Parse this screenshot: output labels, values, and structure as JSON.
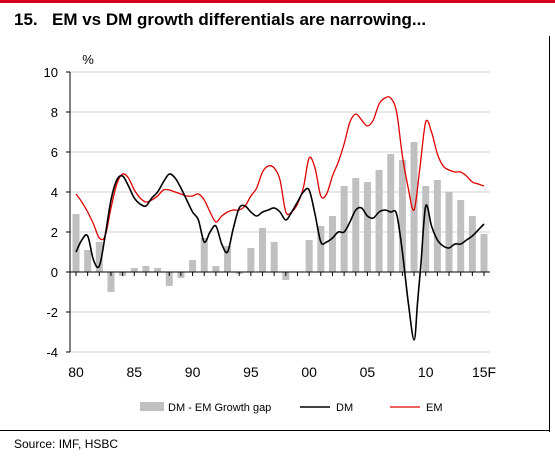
{
  "header": {
    "number": "15.",
    "text": "EM vs DM growth differentials are narrowing..."
  },
  "source": "Source: IMF, HSBC",
  "chart_data": {
    "type": "bar",
    "title": "EM vs DM growth differentials are narrowing...",
    "ylabel": "%",
    "ylim": [
      -4,
      10
    ],
    "yticks": [
      -4,
      -2,
      0,
      2,
      4,
      6,
      8,
      10
    ],
    "x_range": [
      1980,
      2015
    ],
    "xtick_labels": [
      {
        "x": 1980,
        "label": "80"
      },
      {
        "x": 1985,
        "label": "85"
      },
      {
        "x": 1990,
        "label": "90"
      },
      {
        "x": 1995,
        "label": "95"
      },
      {
        "x": 2000,
        "label": "00"
      },
      {
        "x": 2005,
        "label": "05"
      },
      {
        "x": 2010,
        "label": "10"
      },
      {
        "x": 2015,
        "label": "15F"
      }
    ],
    "grid": true,
    "legend_position": "bottom",
    "series": [
      {
        "name": "DM - EM Growth gap",
        "kind": "bar",
        "color": "#c0c0c0",
        "x": [
          1980,
          1981,
          1982,
          1983,
          1984,
          1985,
          1986,
          1987,
          1988,
          1989,
          1990,
          1991,
          1992,
          1993,
          1994,
          1995,
          1996,
          1997,
          1998,
          1999,
          2000,
          2001,
          2002,
          2003,
          2004,
          2005,
          2006,
          2007,
          2008,
          2009,
          2010,
          2011,
          2012,
          2013,
          2014,
          2015
        ],
        "values": [
          2.9,
          1.1,
          1.5,
          -1.0,
          -0.2,
          0.2,
          0.3,
          0.2,
          -0.7,
          -0.3,
          0.6,
          1.7,
          0.3,
          1.3,
          -0.1,
          1.2,
          2.2,
          1.5,
          -0.4,
          0,
          1.6,
          2.3,
          2.8,
          4.3,
          4.7,
          4.5,
          5.1,
          5.9,
          5.6,
          6.5,
          4.3,
          4.6,
          4.0,
          3.6,
          2.8,
          1.9
        ]
      },
      {
        "name": "DM",
        "kind": "line",
        "color": "#000000",
        "x": [
          1980,
          1980.5,
          1981,
          1981.5,
          1982,
          1982.5,
          1983,
          1983.5,
          1984,
          1984.5,
          1985,
          1985.5,
          1986,
          1986.5,
          1987,
          1987.5,
          1988,
          1988.5,
          1989,
          1989.5,
          1990,
          1990.5,
          1991,
          1991.5,
          1992,
          1992.5,
          1993,
          1993.5,
          1994,
          1994.5,
          1995,
          1995.5,
          1996,
          1996.5,
          1997,
          1997.5,
          1998,
          1998.5,
          1999,
          1999.5,
          2000,
          2000.5,
          2001,
          2001.5,
          2002,
          2002.5,
          2003,
          2003.5,
          2004,
          2004.5,
          2005,
          2005.5,
          2006,
          2006.5,
          2007,
          2007.5,
          2008,
          2008.5,
          2009,
          2009.3,
          2009.6,
          2010,
          2010.5,
          2011,
          2011.5,
          2012,
          2012.5,
          2013,
          2013.5,
          2014,
          2014.5,
          2015
        ],
        "values": [
          1.0,
          1.6,
          1.8,
          0.6,
          0.3,
          1.8,
          3.6,
          4.6,
          4.8,
          4.3,
          3.7,
          3.4,
          3.3,
          3.7,
          4.0,
          4.5,
          4.9,
          4.7,
          4.2,
          3.6,
          3.0,
          2.6,
          1.5,
          2.0,
          2.3,
          1.4,
          1.0,
          2.2,
          3.2,
          3.3,
          3.0,
          2.8,
          3.0,
          3.1,
          3.2,
          3.0,
          2.6,
          3.0,
          3.5,
          4.0,
          4.1,
          2.9,
          1.5,
          1.5,
          1.7,
          2.0,
          2.0,
          2.5,
          3.1,
          3.2,
          2.8,
          2.7,
          3.0,
          3.1,
          3.0,
          2.9,
          1.0,
          -1.5,
          -3.4,
          -1.5,
          0.5,
          3.3,
          2.3,
          1.6,
          1.3,
          1.2,
          1.4,
          1.4,
          1.6,
          1.8,
          2.1,
          2.4
        ]
      },
      {
        "name": "EM",
        "kind": "line",
        "color": "#e00000",
        "x": [
          1980,
          1980.5,
          1981,
          1981.5,
          1982,
          1982.5,
          1983,
          1983.5,
          1984,
          1984.5,
          1985,
          1985.5,
          1986,
          1986.5,
          1987,
          1987.5,
          1988,
          1988.5,
          1989,
          1989.5,
          1990,
          1990.5,
          1991,
          1991.5,
          1992,
          1992.5,
          1993,
          1993.5,
          1994,
          1994.5,
          1995,
          1995.5,
          1996,
          1996.5,
          1997,
          1997.5,
          1998,
          1998.5,
          1999,
          1999.5,
          2000,
          2000.5,
          2001,
          2001.5,
          2002,
          2002.5,
          2003,
          2003.5,
          2004,
          2004.5,
          2005,
          2005.5,
          2006,
          2006.5,
          2007,
          2007.5,
          2008,
          2008.5,
          2009,
          2009.5,
          2010,
          2010.5,
          2011,
          2011.5,
          2012,
          2012.5,
          2013,
          2013.5,
          2014,
          2014.5,
          2015
        ],
        "values": [
          3.9,
          3.5,
          3.0,
          2.4,
          1.7,
          1.8,
          3.2,
          4.4,
          4.9,
          4.7,
          4.1,
          3.7,
          3.5,
          3.6,
          3.8,
          4.1,
          4.1,
          4.0,
          3.9,
          3.8,
          3.8,
          3.9,
          3.6,
          3.0,
          2.5,
          2.8,
          3.0,
          3.1,
          3.1,
          3.3,
          3.8,
          4.2,
          5.0,
          5.3,
          5.2,
          4.6,
          3.0,
          3.0,
          3.4,
          4.2,
          5.7,
          5.2,
          3.8,
          3.9,
          4.8,
          5.5,
          6.4,
          7.5,
          7.9,
          7.6,
          7.3,
          7.6,
          8.4,
          8.7,
          8.7,
          8.0,
          5.8,
          4.2,
          3.1,
          5.2,
          7.5,
          7.0,
          5.9,
          5.3,
          5.1,
          5.0,
          5.0,
          4.8,
          4.5,
          4.4,
          4.3
        ]
      }
    ]
  }
}
